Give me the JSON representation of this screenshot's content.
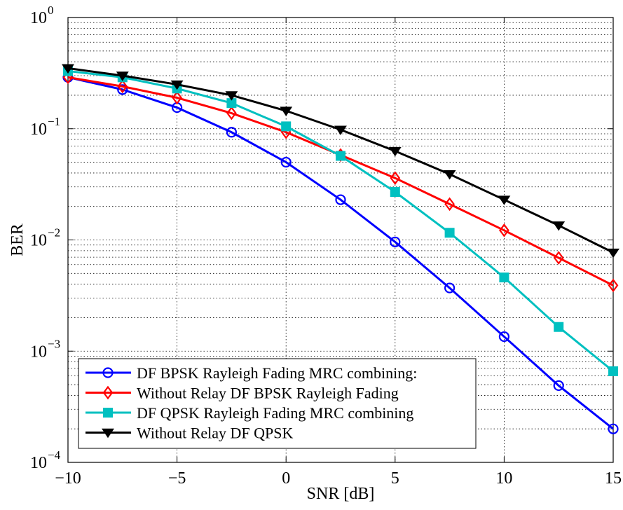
{
  "chart_data": {
    "type": "line",
    "title": "",
    "xlabel": "SNR [dB]",
    "ylabel": "BER",
    "x": [
      -10,
      -7.5,
      -5,
      -2.5,
      0,
      2.5,
      5,
      7.5,
      10,
      12.5,
      15
    ],
    "xlim": [
      -10,
      15
    ],
    "ylim": [
      0.0001,
      1
    ],
    "yscale": "log",
    "grid": "on (major solid + minor dotted)",
    "legend_placement": "bottom-left",
    "x_ticks": [
      -10,
      -5,
      0,
      5,
      10,
      15
    ],
    "x_tick_labels": [
      "−10",
      "−5",
      "0",
      "5",
      "10",
      "15"
    ],
    "y_ticks": [
      0.0001,
      0.001,
      0.01,
      0.1,
      1
    ],
    "y_tick_labels": [
      {
        "base": "10",
        "exp": "−4"
      },
      {
        "base": "10",
        "exp": "−3"
      },
      {
        "base": "10",
        "exp": "−2"
      },
      {
        "base": "10",
        "exp": "−1"
      },
      {
        "base": "10",
        "exp": "0"
      }
    ],
    "series": [
      {
        "name": "DF BPSK Rayleigh Fading MRC combining:",
        "color": "#0000ff",
        "marker": "circle",
        "values": [
          0.29,
          0.225,
          0.155,
          0.093,
          0.05,
          0.023,
          0.0096,
          0.0037,
          0.00135,
          0.00049,
          0.0002
        ]
      },
      {
        "name": "Without Relay DF BPSK Rayleigh Fading",
        "color": "#ff0000",
        "marker": "diamond",
        "values": [
          0.29,
          0.24,
          0.19,
          0.138,
          0.093,
          0.058,
          0.036,
          0.021,
          0.0122,
          0.0069,
          0.0039
        ]
      },
      {
        "name": "DF QPSK Rayleigh Fading MRC combining",
        "color": "#00c0c0",
        "marker": "square",
        "values": [
          0.33,
          0.29,
          0.23,
          0.17,
          0.105,
          0.057,
          0.027,
          0.0116,
          0.0046,
          0.00165,
          0.00066
        ]
      },
      {
        "name": "Without Relay DF QPSK",
        "color": "#000000",
        "marker": "triangle-down",
        "values": [
          0.35,
          0.3,
          0.25,
          0.2,
          0.145,
          0.098,
          0.063,
          0.039,
          0.023,
          0.0135,
          0.0077
        ]
      }
    ]
  }
}
